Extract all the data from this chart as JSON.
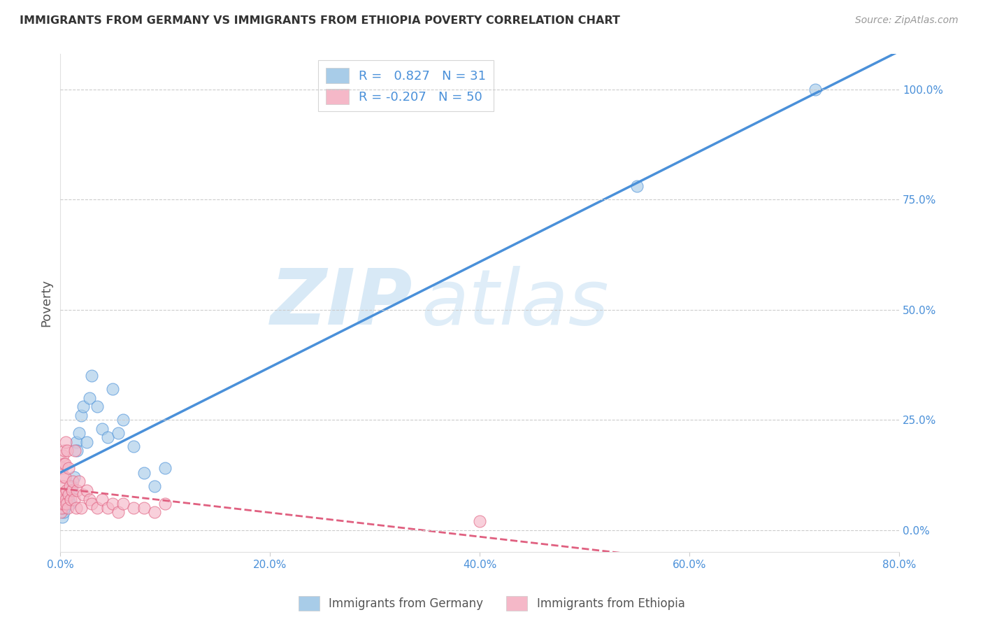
{
  "title": "IMMIGRANTS FROM GERMANY VS IMMIGRANTS FROM ETHIOPIA POVERTY CORRELATION CHART",
  "source": "Source: ZipAtlas.com",
  "ylabel": "Poverty",
  "ylabel_right_ticks": [
    "0.0%",
    "25.0%",
    "50.0%",
    "75.0%",
    "100.0%"
  ],
  "ylabel_right_vals": [
    0,
    25,
    50,
    75,
    100
  ],
  "xlim": [
    0,
    80
  ],
  "ylim": [
    -5,
    108
  ],
  "germany_color": "#a8cce8",
  "germany_color_line": "#4a90d9",
  "ethiopia_color": "#f5b8c8",
  "ethiopia_color_line": "#e06080",
  "R_germany": 0.827,
  "N_germany": 31,
  "R_ethiopia": -0.207,
  "N_ethiopia": 50,
  "legend_label_germany": "Immigrants from Germany",
  "legend_label_ethiopia": "Immigrants from Ethiopia",
  "germany_x": [
    0.2,
    0.3,
    0.4,
    0.5,
    0.6,
    0.7,
    0.8,
    0.9,
    1.0,
    1.1,
    1.3,
    1.5,
    1.6,
    1.8,
    2.0,
    2.2,
    2.5,
    2.8,
    3.0,
    3.5,
    4.0,
    4.5,
    5.0,
    5.5,
    6.0,
    7.0,
    8.0,
    9.0,
    10.0,
    55.0,
    72.0
  ],
  "germany_y": [
    3,
    4,
    5,
    6,
    7,
    8,
    7,
    6,
    9,
    10,
    12,
    20,
    18,
    22,
    26,
    28,
    20,
    30,
    35,
    28,
    23,
    21,
    32,
    22,
    25,
    19,
    13,
    10,
    14,
    78,
    100
  ],
  "ethiopia_x": [
    0.05,
    0.08,
    0.1,
    0.12,
    0.15,
    0.18,
    0.2,
    0.22,
    0.25,
    0.28,
    0.3,
    0.32,
    0.35,
    0.38,
    0.4,
    0.42,
    0.45,
    0.5,
    0.52,
    0.55,
    0.6,
    0.65,
    0.7,
    0.75,
    0.8,
    0.9,
    1.0,
    1.1,
    1.2,
    1.3,
    1.4,
    1.5,
    1.6,
    1.8,
    2.0,
    2.2,
    2.5,
    2.8,
    3.0,
    3.5,
    4.0,
    4.5,
    5.0,
    5.5,
    6.0,
    7.0,
    8.0,
    9.0,
    10.0,
    40.0
  ],
  "ethiopia_y": [
    4,
    6,
    5,
    7,
    6,
    8,
    14,
    12,
    17,
    10,
    7,
    15,
    8,
    18,
    6,
    12,
    15,
    7,
    20,
    9,
    6,
    18,
    5,
    14,
    8,
    10,
    7,
    9,
    11,
    7,
    18,
    5,
    9,
    11,
    5,
    8,
    9,
    7,
    6,
    5,
    7,
    5,
    6,
    4,
    6,
    5,
    5,
    4,
    6,
    2
  ],
  "watermark_zip": "ZIP",
  "watermark_atlas": "atlas",
  "background_color": "#ffffff",
  "grid_color": "#cccccc",
  "xticks": [
    0,
    20,
    40,
    60,
    80
  ],
  "xticklabels": [
    "0.0%",
    "20.0%",
    "40.0%",
    "60.0%",
    "80.0%"
  ]
}
